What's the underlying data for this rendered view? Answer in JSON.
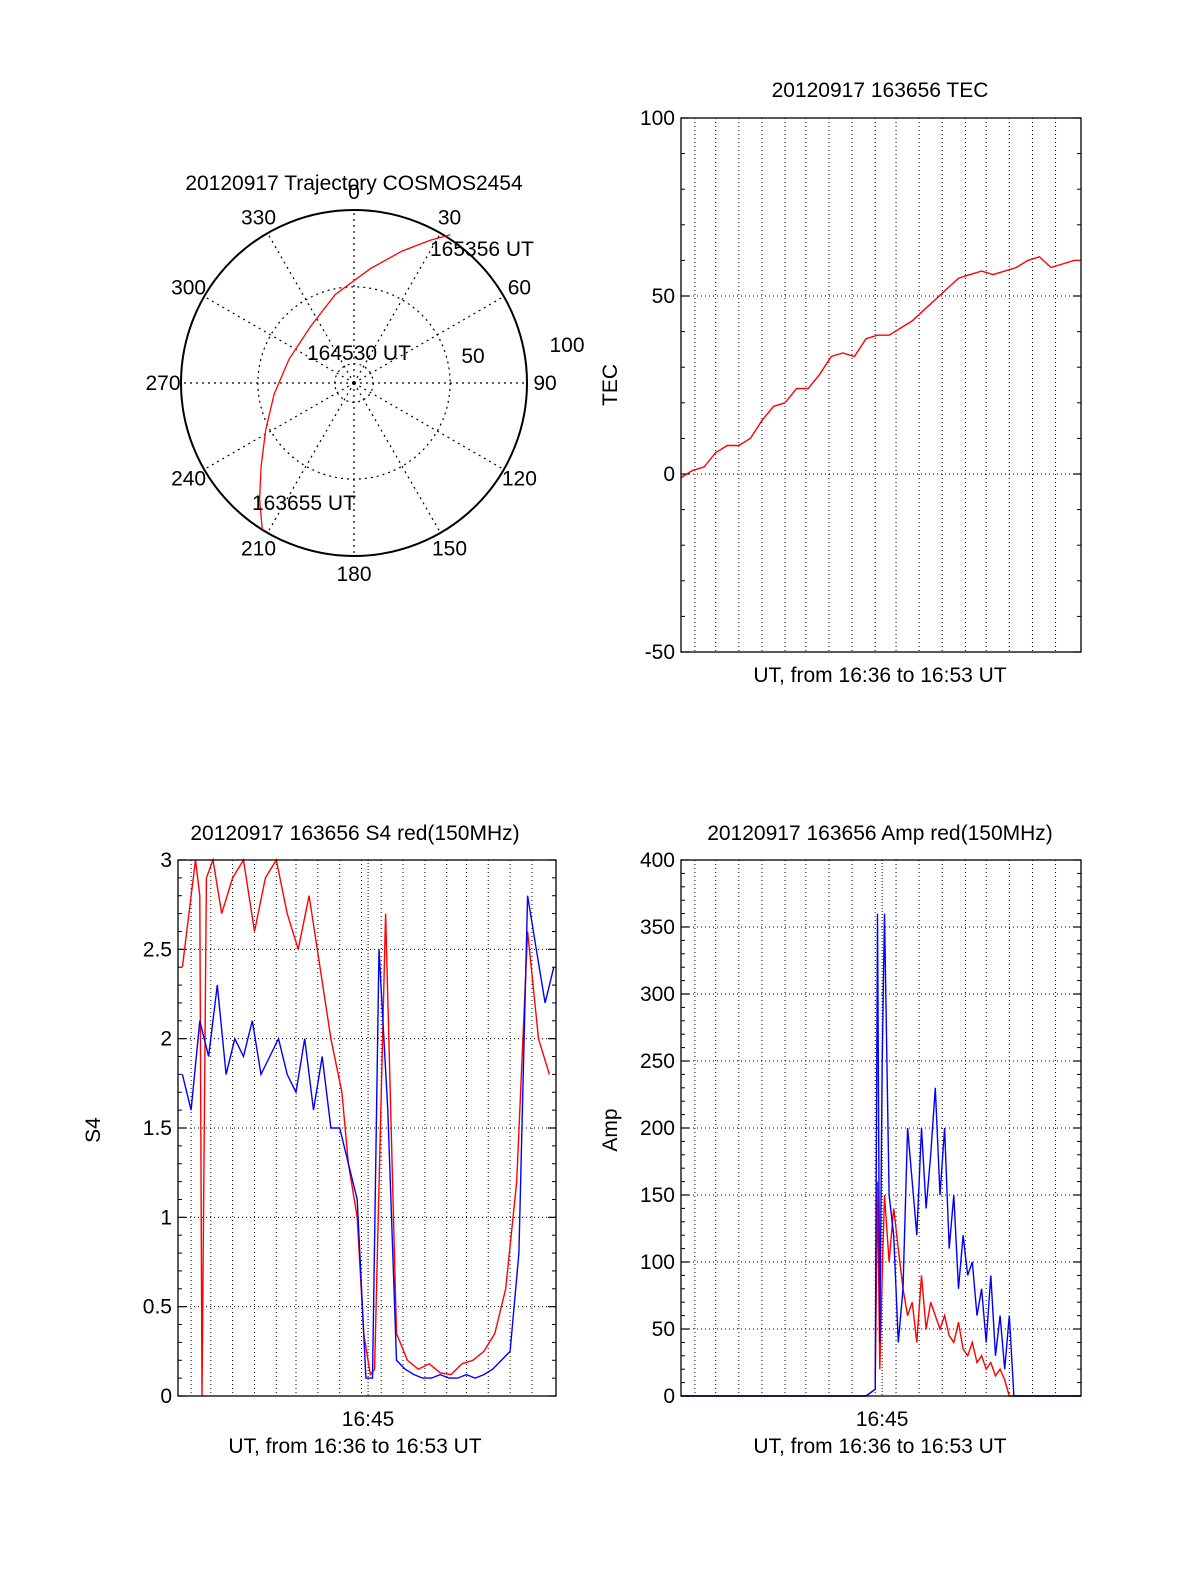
{
  "chart_data": [
    {
      "type": "polar",
      "title": "20120917 Trajectory COSMOS2454",
      "azimuth_labels": [
        "0",
        "30",
        "60",
        "90",
        "120",
        "150",
        "180",
        "210",
        "240",
        "270",
        "300",
        "330"
      ],
      "radial_labels": [
        "50",
        "100"
      ],
      "elevation_rings": [
        0,
        50,
        100
      ],
      "track": [
        {
          "az": 212,
          "r": 90
        },
        {
          "az": 219,
          "r": 78
        },
        {
          "az": 228,
          "r": 65
        },
        {
          "az": 242,
          "r": 52
        },
        {
          "az": 262,
          "r": 42
        },
        {
          "az": 290,
          "r": 36
        },
        {
          "az": 322,
          "r": 37
        },
        {
          "az": 348,
          "r": 47
        },
        {
          "az": 8,
          "r": 60
        },
        {
          "az": 20,
          "r": 73
        },
        {
          "az": 28,
          "r": 84
        },
        {
          "az": 33,
          "r": 92
        }
      ],
      "annotations": [
        "165356 UT",
        "164530 UT",
        "163655 UT"
      ],
      "color": "#ff0000"
    },
    {
      "type": "line",
      "title": "20120917 163656 TEC",
      "xlabel": "UT, from 16:36 to 16:53 UT",
      "ylabel": "TEC",
      "xlim": [
        0,
        17.3
      ],
      "ylim": [
        -50,
        100
      ],
      "yticks": [
        "-50",
        "0",
        "50",
        "100"
      ],
      "x_grid": [
        0.6,
        1.5,
        2.5,
        3.5,
        4.5,
        5.4,
        6.4,
        7.4,
        8.4,
        9.3,
        10.3,
        11.3,
        12.3,
        13.2,
        14.2,
        15.2,
        16.2
      ],
      "series": [
        {
          "color": "#ff0000",
          "x": [
            0,
            0.5,
            1.0,
            1.5,
            2.0,
            2.5,
            3.0,
            3.5,
            4.0,
            4.5,
            5.0,
            5.5,
            6.0,
            6.5,
            7.0,
            7.5,
            8.0,
            8.5,
            9.0,
            9.5,
            10.0,
            10.5,
            11.0,
            11.5,
            12.0,
            12.5,
            13.0,
            13.5,
            14.0,
            14.5,
            15.0,
            15.5,
            16.0,
            16.5,
            17.0,
            17.3
          ],
          "y": [
            -1,
            1,
            2,
            6,
            8,
            8,
            10,
            15,
            19,
            20,
            24,
            24,
            28,
            33,
            34,
            33,
            38,
            39,
            39,
            41,
            43,
            46,
            49,
            52,
            55,
            56,
            57,
            56,
            57,
            58,
            60,
            61,
            58,
            59,
            60,
            60
          ]
        }
      ]
    },
    {
      "type": "line",
      "title": "20120917 163656 S4 red(150MHz)",
      "xlabel": "UT, from 16:36 to 16:53 UT",
      "ylabel": "S4",
      "xtick_label": "16:45",
      "xtick_pos": 8.7,
      "xlim": [
        0,
        17.3
      ],
      "ylim": [
        0,
        3
      ],
      "yticks": [
        "0",
        "0.5",
        "1",
        "1.5",
        "2",
        "2.5",
        "3"
      ],
      "x_grid": [
        0.6,
        1.5,
        2.5,
        3.5,
        4.5,
        5.4,
        6.4,
        7.4,
        8.4,
        9.3,
        10.3,
        11.3,
        12.3,
        13.2,
        14.2,
        15.2,
        16.2
      ],
      "series": [
        {
          "color": "#ff0000",
          "x": [
            0.2,
            0.8,
            1.0,
            1.1,
            1.3,
            1.6,
            2.0,
            2.5,
            3.0,
            3.5,
            4.0,
            4.5,
            5.0,
            5.5,
            6.0,
            6.5,
            7.0,
            7.5,
            7.8,
            8.2,
            8.5,
            8.8,
            9.0,
            9.5,
            10.0,
            10.5,
            11.0,
            11.5,
            12.0,
            12.5,
            13.0,
            13.5,
            14.0,
            14.5,
            15.0,
            15.5,
            16.0,
            16.5,
            17.0
          ],
          "y": [
            2.4,
            3.0,
            2.8,
            0.0,
            2.9,
            3.0,
            2.7,
            2.9,
            3.0,
            2.6,
            2.9,
            3.0,
            2.7,
            2.5,
            2.8,
            2.4,
            2.0,
            1.7,
            1.3,
            1.0,
            0.35,
            0.12,
            0.15,
            2.7,
            0.35,
            0.2,
            0.15,
            0.18,
            0.13,
            0.12,
            0.18,
            0.2,
            0.25,
            0.35,
            0.6,
            1.2,
            2.6,
            2.0,
            1.8
          ]
        },
        {
          "color": "#0000ff",
          "x": [
            0.2,
            0.6,
            1.0,
            1.4,
            1.8,
            2.2,
            2.6,
            3.0,
            3.4,
            3.8,
            4.2,
            4.6,
            5.0,
            5.4,
            5.8,
            6.2,
            6.6,
            7.0,
            7.4,
            7.8,
            8.2,
            8.6,
            8.9,
            9.2,
            9.6,
            10.0,
            10.4,
            10.8,
            11.2,
            11.6,
            12.0,
            12.4,
            12.8,
            13.2,
            13.6,
            14.0,
            14.4,
            14.8,
            15.2,
            15.6,
            16.0,
            16.4,
            16.8,
            17.2
          ],
          "y": [
            1.8,
            1.6,
            2.1,
            1.9,
            2.3,
            1.8,
            2.0,
            1.9,
            2.1,
            1.8,
            1.9,
            2.0,
            1.8,
            1.7,
            2.0,
            1.6,
            1.9,
            1.5,
            1.5,
            1.3,
            1.1,
            0.1,
            0.1,
            2.5,
            1.6,
            0.2,
            0.15,
            0.12,
            0.1,
            0.1,
            0.12,
            0.1,
            0.1,
            0.12,
            0.1,
            0.12,
            0.15,
            0.2,
            0.25,
            0.8,
            2.8,
            2.5,
            2.2,
            2.4
          ]
        }
      ]
    },
    {
      "type": "line",
      "title": "20120917 163656 Amp red(150MHz)",
      "xlabel": "UT, from 16:36 to 16:53 UT",
      "ylabel": "Amp",
      "xtick_label": "16:45",
      "xtick_pos": 8.7,
      "xlim": [
        0,
        17.3
      ],
      "ylim": [
        0,
        400
      ],
      "yticks": [
        "0",
        "50",
        "100",
        "150",
        "200",
        "250",
        "300",
        "350",
        "400"
      ],
      "x_grid": [
        0.6,
        1.5,
        2.5,
        3.5,
        4.5,
        5.4,
        6.4,
        7.4,
        8.4,
        9.3,
        10.3,
        11.3,
        12.3,
        13.2,
        14.2,
        15.2,
        16.2
      ],
      "series": [
        {
          "color": "#ff0000",
          "x": [
            0,
            2,
            4,
            6,
            8.0,
            8.4,
            8.5,
            8.6,
            8.7,
            8.8,
            9.0,
            9.2,
            9.4,
            9.6,
            9.8,
            10.0,
            10.2,
            10.4,
            10.6,
            10.8,
            11.0,
            11.2,
            11.4,
            11.6,
            11.8,
            12.0,
            12.2,
            12.4,
            12.6,
            12.8,
            13.0,
            13.2,
            13.4,
            13.6,
            13.8,
            14.0,
            14.2,
            15.0,
            17.3
          ],
          "y": [
            0,
            0,
            0,
            0,
            0,
            5,
            160,
            20,
            90,
            150,
            100,
            140,
            110,
            80,
            60,
            70,
            40,
            90,
            50,
            70,
            60,
            50,
            60,
            45,
            40,
            55,
            35,
            30,
            40,
            25,
            30,
            20,
            25,
            15,
            20,
            12,
            0,
            0,
            0
          ]
        },
        {
          "color": "#0000ff",
          "x": [
            0,
            2,
            4,
            6,
            8.0,
            8.4,
            8.5,
            8.6,
            8.7,
            8.8,
            9.0,
            9.2,
            9.4,
            9.6,
            9.8,
            10.0,
            10.2,
            10.4,
            10.6,
            10.8,
            11.0,
            11.2,
            11.4,
            11.6,
            11.8,
            12.0,
            12.2,
            12.4,
            12.6,
            12.8,
            13.0,
            13.2,
            13.4,
            13.6,
            13.8,
            14.0,
            14.2,
            14.4,
            15.0,
            17.3
          ],
          "y": [
            0,
            0,
            0,
            0,
            0,
            5,
            360,
            40,
            250,
            360,
            150,
            120,
            40,
            80,
            200,
            160,
            120,
            200,
            140,
            180,
            230,
            150,
            200,
            110,
            150,
            80,
            120,
            90,
            100,
            60,
            80,
            40,
            90,
            30,
            60,
            20,
            60,
            0,
            0,
            0
          ]
        }
      ]
    }
  ]
}
